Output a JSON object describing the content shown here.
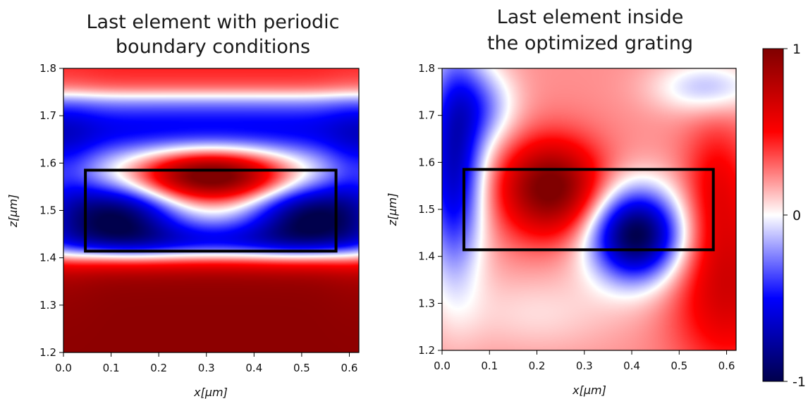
{
  "chart_data": [
    {
      "type": "heatmap",
      "title_lines": [
        "Last element with periodic",
        "boundary conditions"
      ],
      "xlabel": "x[μm]",
      "ylabel": "z[μm]",
      "xlim": [
        0.0,
        0.62
      ],
      "ylim": [
        1.2,
        1.8
      ],
      "xticks": [
        "0.0",
        "0.1",
        "0.2",
        "0.3",
        "0.4",
        "0.5",
        "0.6"
      ],
      "yticks": [
        "1.2",
        "1.3",
        "1.4",
        "1.5",
        "1.6",
        "1.7",
        "1.8"
      ],
      "xtick_values": [
        0.0,
        0.1,
        0.2,
        0.3,
        0.4,
        0.5,
        0.6
      ],
      "ytick_values": [
        1.2,
        1.3,
        1.4,
        1.5,
        1.6,
        1.7,
        1.8
      ],
      "colormap": "seismic",
      "value_range": [
        -1,
        1
      ],
      "grating_box": {
        "x": [
          0.046,
          0.572
        ],
        "z": [
          1.414,
          1.585
        ]
      },
      "field_peaks": [
        {
          "x": 0.31,
          "z": 1.28,
          "value": 0.95
        },
        {
          "x": 0.31,
          "z": 1.58,
          "value": 0.8
        },
        {
          "x": 0.11,
          "z": 1.49,
          "value": -0.85
        },
        {
          "x": 0.52,
          "z": 1.49,
          "value": -0.85
        },
        {
          "x": 0.31,
          "z": 1.69,
          "value": -0.5
        },
        {
          "x": 0.31,
          "z": 1.78,
          "value": 0.7
        }
      ]
    },
    {
      "type": "heatmap",
      "title_lines": [
        "Last element inside",
        "the optimized grating"
      ],
      "xlabel": "x[μm]",
      "ylabel": "z[μm]",
      "xlim": [
        0.0,
        0.62
      ],
      "ylim": [
        1.2,
        1.8
      ],
      "xticks": [
        "0.0",
        "0.1",
        "0.2",
        "0.3",
        "0.4",
        "0.5",
        "0.6"
      ],
      "yticks": [
        "1.2",
        "1.3",
        "1.4",
        "1.5",
        "1.6",
        "1.7",
        "1.8"
      ],
      "xtick_values": [
        0.0,
        0.1,
        0.2,
        0.3,
        0.4,
        0.5,
        0.6
      ],
      "ytick_values": [
        1.2,
        1.3,
        1.4,
        1.5,
        1.6,
        1.7,
        1.8
      ],
      "colormap": "seismic",
      "value_range": [
        -1,
        1
      ],
      "grating_box": {
        "x": [
          0.046,
          0.572
        ],
        "z": [
          1.414,
          1.585
        ]
      },
      "field_peaks": [
        {
          "x": 0.23,
          "z": 1.55,
          "value": 0.95
        },
        {
          "x": 0.41,
          "z": 1.45,
          "value": -1.0
        },
        {
          "x": 0.03,
          "z": 1.55,
          "value": -0.7
        },
        {
          "x": 0.59,
          "z": 1.35,
          "value": 0.6
        },
        {
          "x": 0.55,
          "z": 1.74,
          "value": -0.25
        }
      ]
    }
  ],
  "colorbar": {
    "max_label": "1",
    "mid_label": "0",
    "min_label": "-1",
    "colormap": "seismic"
  }
}
